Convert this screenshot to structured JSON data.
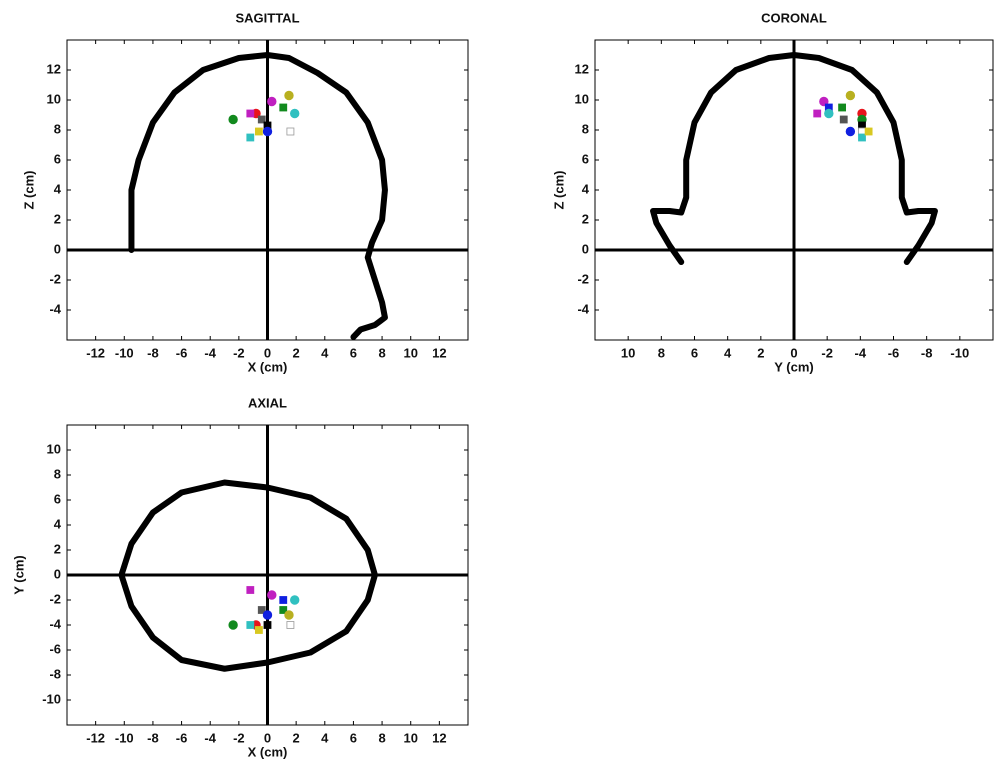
{
  "chart_data": [
    {
      "type": "scatter",
      "title": "SAGITTAL",
      "xlabel": "X (cm)",
      "ylabel": "Z (cm)",
      "xlim": [
        -14,
        14
      ],
      "ylim": [
        -6,
        14
      ],
      "xticks": [
        -12,
        -10,
        -8,
        -6,
        -4,
        -2,
        0,
        2,
        4,
        6,
        8,
        10,
        12
      ],
      "yticks": [
        -4,
        -2,
        0,
        2,
        4,
        6,
        8,
        10,
        12
      ],
      "outline": {
        "color": "#000000",
        "x": [
          -9.5,
          -9.5,
          -9,
          -8,
          -6.5,
          -4.5,
          -2,
          0,
          1.5,
          3.5,
          5.5,
          7,
          8,
          8.2,
          8,
          7.3,
          7,
          7.5,
          8,
          8.2,
          7.5,
          6.5,
          6
        ],
        "y": [
          0,
          4,
          6,
          8.5,
          10.5,
          12,
          12.8,
          13,
          12.8,
          11.8,
          10.5,
          8.5,
          6,
          4,
          2,
          0.5,
          -0.5,
          -2,
          -3.5,
          -4.5,
          -5,
          -5.3,
          -5.8
        ]
      },
      "series": [
        {
          "marker": "circle",
          "color": "#e8141c",
          "x": [
            -0.8
          ],
          "y": [
            9.1
          ]
        },
        {
          "marker": "square",
          "color": "#c020c0",
          "x": [
            -1.2
          ],
          "y": [
            9.1
          ]
        },
        {
          "marker": "circle",
          "color": "#c020c0",
          "x": [
            0.3
          ],
          "y": [
            9.9
          ]
        },
        {
          "marker": "circle",
          "color": "#b8b020",
          "x": [
            1.5
          ],
          "y": [
            10.3
          ]
        },
        {
          "marker": "square",
          "color": "#128a1e",
          "x": [
            1.1
          ],
          "y": [
            9.5
          ]
        },
        {
          "marker": "circle",
          "color": "#30c0c0",
          "x": [
            1.9
          ],
          "y": [
            9.1
          ]
        },
        {
          "marker": "circle",
          "color": "#128a1e",
          "x": [
            -2.4
          ],
          "y": [
            8.7
          ]
        },
        {
          "marker": "square",
          "color": "#555555",
          "x": [
            -0.4
          ],
          "y": [
            8.7
          ]
        },
        {
          "marker": "square",
          "color": "#000000",
          "x": [
            0
          ],
          "y": [
            8.3
          ]
        },
        {
          "marker": "circle",
          "color": "#1020e0",
          "x": [
            0
          ],
          "y": [
            7.9
          ]
        },
        {
          "marker": "square",
          "color": "#d8c820",
          "x": [
            -0.6
          ],
          "y": [
            7.9
          ]
        },
        {
          "marker": "square",
          "color": "#30c0c0",
          "x": [
            -1.2
          ],
          "y": [
            7.5
          ]
        },
        {
          "marker": "square",
          "color": "#ffffff",
          "x": [
            1.6
          ],
          "y": [
            7.9
          ]
        }
      ]
    },
    {
      "type": "scatter",
      "title": "CORONAL",
      "xlabel": "Y (cm)",
      "ylabel": "Z (cm)",
      "xlim": [
        12,
        -12
      ],
      "ylim": [
        -6,
        14
      ],
      "xticks": [
        10,
        8,
        6,
        4,
        2,
        0,
        -2,
        -4,
        -6,
        -8,
        -10
      ],
      "yticks": [
        -4,
        -2,
        0,
        2,
        4,
        6,
        8,
        10,
        12
      ],
      "outline": {
        "color": "#000000",
        "x": [
          6.8,
          7.5,
          8.3,
          8.5,
          7.5,
          6.8,
          6.5,
          6.5,
          6,
          5,
          3.5,
          1.5,
          0,
          -1.5,
          -3.5,
          -5,
          -6,
          -6.5,
          -6.5,
          -6.8,
          -7.5,
          -8.5,
          -8.3,
          -7.5,
          -6.8
        ],
        "y": [
          -0.8,
          0.3,
          1.8,
          2.6,
          2.6,
          2.5,
          3.5,
          6,
          8.5,
          10.5,
          12,
          12.8,
          13,
          12.8,
          12,
          10.5,
          8.5,
          6,
          3.5,
          2.5,
          2.6,
          2.6,
          1.8,
          0.3,
          -0.8
        ]
      },
      "series": [
        {
          "marker": "square",
          "color": "#c020c0",
          "x": [
            -1.4
          ],
          "y": [
            9.1
          ]
        },
        {
          "marker": "circle",
          "color": "#c020c0",
          "x": [
            -1.8
          ],
          "y": [
            9.9
          ]
        },
        {
          "marker": "square",
          "color": "#1020e0",
          "x": [
            -2.1
          ],
          "y": [
            9.5
          ]
        },
        {
          "marker": "circle",
          "color": "#30c0c0",
          "x": [
            -2.1
          ],
          "y": [
            9.1
          ]
        },
        {
          "marker": "square",
          "color": "#128a1e",
          "x": [
            -2.9
          ],
          "y": [
            9.5
          ]
        },
        {
          "marker": "square",
          "color": "#555555",
          "x": [
            -3
          ],
          "y": [
            8.7
          ]
        },
        {
          "marker": "circle",
          "color": "#b8b020",
          "x": [
            -3.4
          ],
          "y": [
            10.3
          ]
        },
        {
          "marker": "circle",
          "color": "#1020e0",
          "x": [
            -3.4
          ],
          "y": [
            7.9
          ]
        },
        {
          "marker": "circle",
          "color": "#e8141c",
          "x": [
            -4.1
          ],
          "y": [
            9.1
          ]
        },
        {
          "marker": "circle",
          "color": "#128a1e",
          "x": [
            -4.1
          ],
          "y": [
            8.7
          ]
        },
        {
          "marker": "square",
          "color": "#000000",
          "x": [
            -4.1
          ],
          "y": [
            8.3
          ]
        },
        {
          "marker": "square",
          "color": "#ffffff",
          "x": [
            -4.1
          ],
          "y": [
            7.9
          ]
        },
        {
          "marker": "square",
          "color": "#30c0c0",
          "x": [
            -4.1
          ],
          "y": [
            7.5
          ]
        },
        {
          "marker": "square",
          "color": "#d8c820",
          "x": [
            -4.5
          ],
          "y": [
            7.9
          ]
        }
      ]
    },
    {
      "type": "scatter",
      "title": "AXIAL",
      "xlabel": "X (cm)",
      "ylabel": "Y (cm)",
      "xlim": [
        -14,
        14
      ],
      "ylim": [
        -12,
        12
      ],
      "xticks": [
        -12,
        -10,
        -8,
        -6,
        -4,
        -2,
        0,
        2,
        4,
        6,
        8,
        10,
        12
      ],
      "yticks": [
        -10,
        -8,
        -6,
        -4,
        -2,
        0,
        2,
        4,
        6,
        8,
        10
      ],
      "outline": {
        "color": "#000000",
        "x": [
          -10.2,
          -9.5,
          -8,
          -6,
          -3,
          0,
          3,
          5.5,
          7,
          7.5,
          7,
          5.5,
          3,
          0,
          -3,
          -6,
          -8,
          -9.5,
          -10.2
        ],
        "y": [
          0,
          2.5,
          5,
          6.6,
          7.4,
          7,
          6.2,
          4.5,
          2,
          0,
          -2,
          -4.5,
          -6.2,
          -7,
          -7.5,
          -6.8,
          -5,
          -2.5,
          0
        ]
      },
      "series": [
        {
          "marker": "square",
          "color": "#c020c0",
          "x": [
            -1.2
          ],
          "y": [
            -1.2
          ]
        },
        {
          "marker": "circle",
          "color": "#c020c0",
          "x": [
            0.3
          ],
          "y": [
            -1.6
          ]
        },
        {
          "marker": "square",
          "color": "#1020e0",
          "x": [
            1.1
          ],
          "y": [
            -2
          ]
        },
        {
          "marker": "circle",
          "color": "#30c0c0",
          "x": [
            1.9
          ],
          "y": [
            -2
          ]
        },
        {
          "marker": "square",
          "color": "#128a1e",
          "x": [
            1.1
          ],
          "y": [
            -2.8
          ]
        },
        {
          "marker": "square",
          "color": "#555555",
          "x": [
            -0.4
          ],
          "y": [
            -2.8
          ]
        },
        {
          "marker": "circle",
          "color": "#b8b020",
          "x": [
            1.5
          ],
          "y": [
            -3.2
          ]
        },
        {
          "marker": "circle",
          "color": "#1020e0",
          "x": [
            0
          ],
          "y": [
            -3.2
          ]
        },
        {
          "marker": "circle",
          "color": "#e8141c",
          "x": [
            -0.8
          ],
          "y": [
            -4
          ]
        },
        {
          "marker": "circle",
          "color": "#128a1e",
          "x": [
            -2.4
          ],
          "y": [
            -4
          ]
        },
        {
          "marker": "square",
          "color": "#000000",
          "x": [
            0
          ],
          "y": [
            -4
          ]
        },
        {
          "marker": "square",
          "color": "#30c0c0",
          "x": [
            -1.2
          ],
          "y": [
            -4
          ]
        },
        {
          "marker": "square",
          "color": "#d8c820",
          "x": [
            -0.6
          ],
          "y": [
            -4.4
          ]
        },
        {
          "marker": "square",
          "color": "#ffffff",
          "x": [
            1.6
          ],
          "y": [
            -4
          ]
        }
      ]
    }
  ]
}
